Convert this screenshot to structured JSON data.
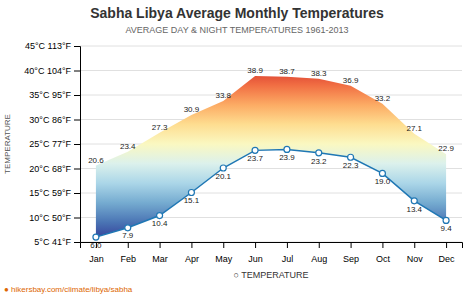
{
  "chart_data": {
    "type": "range_area",
    "title": "Sabha Libya Average Monthly Temperatures",
    "subtitle": "AVERAGE DAY & NIGHT TEMPERATURES 1961-2013",
    "y_label": "TEMPERATURE",
    "x_label": "○  TEMPERATURE",
    "annotation": "● hikersbay.com/climate/libya/sabha",
    "categories": [
      "Jan",
      "Feb",
      "Mar",
      "Apr",
      "May",
      "Jun",
      "Jul",
      "Aug",
      "Sep",
      "Oct",
      "Nov",
      "Dec"
    ],
    "series": [
      {
        "values": [
          20.6,
          23.4,
          27.3,
          30.9,
          33.8,
          38.9,
          38.7,
          38.3,
          36.9,
          33.2,
          27.1,
          22.9
        ]
      },
      {
        "values": [
          6.0,
          7.9,
          10.4,
          15.1,
          20.1,
          23.7,
          23.9,
          23.2,
          22.3,
          19.0,
          13.4,
          9.4
        ],
        "value_labels": [
          "6.0",
          "7.9",
          "10.4",
          "15.1",
          "20.1",
          "23.7",
          "23.9",
          "23.2",
          "22.3",
          "19.0",
          "13.4",
          "9.4"
        ],
        "marker": "circle"
      }
    ],
    "data_labels": true,
    "ylim": [
      5,
      45
    ],
    "yticks": [
      {
        "value": 5,
        "label": "5°C 41°F"
      },
      {
        "value": 10,
        "label": "10°C 50°F"
      },
      {
        "value": 15,
        "label": "15°C 59°F"
      },
      {
        "value": 20,
        "label": "20°C 68°F"
      },
      {
        "value": 25,
        "label": "25°C 77°F"
      },
      {
        "value": 30,
        "label": "30°C 86°F"
      },
      {
        "value": 35,
        "label": "35°C 95°F"
      },
      {
        "value": 40,
        "label": "40°C 104°F"
      },
      {
        "value": 45,
        "label": "45°C 113°F"
      }
    ],
    "grid": true
  }
}
